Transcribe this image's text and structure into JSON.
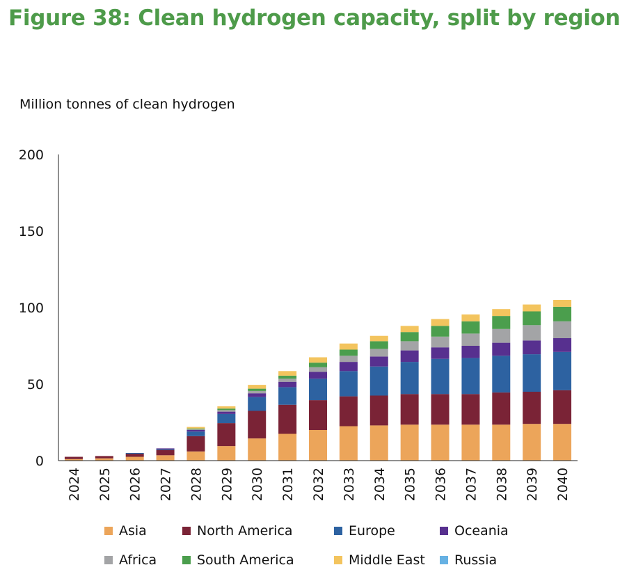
{
  "title": "Figure 38: Clean hydrogen capacity, split by region",
  "chart_data": {
    "type": "bar",
    "stacked": true,
    "ylabel": "Million tonnes of clean hydrogen",
    "ylim": [
      0,
      200
    ],
    "yticks": [
      0,
      50,
      100,
      150,
      200
    ],
    "grid": false,
    "legend_position": "bottom",
    "categories": [
      "2024",
      "2025",
      "2026",
      "2027",
      "2028",
      "2029",
      "2030",
      "2031",
      "2032",
      "2033",
      "2034",
      "2035",
      "2036",
      "2037",
      "2038",
      "2039",
      "2040"
    ],
    "series": [
      {
        "name": "Asia",
        "color": "#eca55a",
        "values": [
          1,
          1.5,
          2.5,
          3.5,
          6,
          9.5,
          14.5,
          17.5,
          20,
          22.5,
          23,
          23.5,
          23.5,
          23.5,
          23.5,
          24,
          24
        ]
      },
      {
        "name": "North America",
        "color": "#7a2336",
        "values": [
          1.5,
          1.5,
          2,
          3.5,
          10,
          15,
          18,
          19,
          19.5,
          19.5,
          19.5,
          20,
          20,
          20,
          21,
          21,
          22
        ]
      },
      {
        "name": "Europe",
        "color": "#2d62a1",
        "values": [
          0,
          0,
          0.5,
          0.5,
          3,
          6,
          9,
          11.5,
          14,
          16.5,
          19,
          21,
          23,
          23.5,
          24,
          24.5,
          25
        ]
      },
      {
        "name": "Oceania",
        "color": "#57308f",
        "values": [
          0,
          0,
          0,
          0.5,
          1,
          1.5,
          2.5,
          3.5,
          4.5,
          6,
          6.5,
          7.5,
          7.5,
          8,
          8.5,
          9,
          9
        ]
      },
      {
        "name": "Africa",
        "color": "#a3a4a6",
        "values": [
          0,
          0,
          0,
          0,
          0.5,
          1,
          1.5,
          2,
          3,
          4,
          5,
          6,
          7,
          8,
          9,
          10,
          11
        ]
      },
      {
        "name": "South America",
        "color": "#4b9e4d",
        "values": [
          0,
          0,
          0,
          0,
          0.5,
          1,
          1.5,
          2,
          3,
          4,
          5,
          6,
          7,
          8,
          8.5,
          9,
          9.5
        ]
      },
      {
        "name": "Middle East",
        "color": "#f3c45e",
        "values": [
          0,
          0,
          0,
          0,
          1,
          1.5,
          2.5,
          3,
          3.5,
          4,
          3.5,
          4,
          4.5,
          4.5,
          4.5,
          4.5,
          4.5
        ]
      },
      {
        "name": "Russia",
        "color": "#66b1e3",
        "values": [
          0,
          0,
          0,
          0,
          0,
          0,
          0,
          0,
          0,
          0,
          0,
          0,
          0,
          0,
          0,
          0,
          0
        ]
      }
    ]
  }
}
